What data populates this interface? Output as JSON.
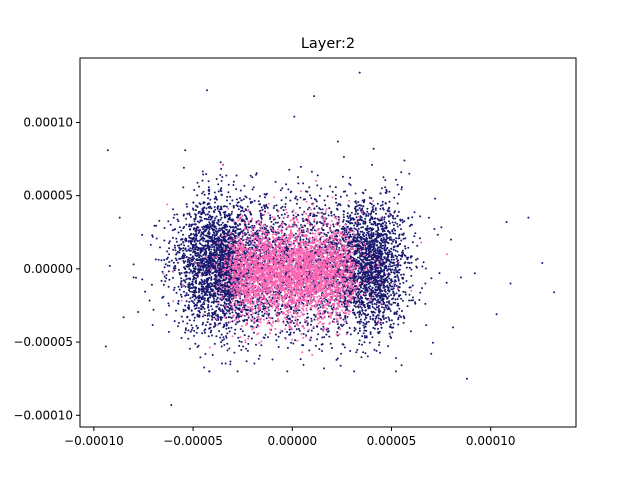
{
  "chart_data": {
    "type": "scatter",
    "title": "Layer:2",
    "xlabel": "",
    "ylabel": "",
    "xlim": [
      -0.000107,
      0.000143
    ],
    "ylim": [
      -0.000108,
      0.000144
    ],
    "grid": false,
    "legend": "none",
    "x_ticks": [
      -0.0001,
      -5e-05,
      0.0,
      5e-05,
      0.0001
    ],
    "x_tick_labels": [
      "−0.00010",
      "−0.00005",
      "0.00000",
      "0.00005",
      "0.00010"
    ],
    "y_ticks": [
      -0.0001,
      -5e-05,
      0.0,
      5e-05,
      0.0001
    ],
    "y_tick_labels": [
      "−0.00010",
      "−0.00005",
      "0.00000",
      "0.00005",
      "0.00010"
    ],
    "series": [
      {
        "color": "#191970",
        "marker_size": 1,
        "approx_count": 6500,
        "distribution": "dense cluster roughly x in [-0.00004, 0.00006], y in [-0.00005, 0.00006] with denser lobes near x=-0.00004 and x=0.00004",
        "outliers": [
          [
            -9.3e-05,
            8.1e-05
          ],
          [
            -9.4e-05,
            -5.3e-05
          ],
          [
            -4.3e-05,
            0.000122
          ],
          [
            3.4e-05,
            0.000134
          ],
          [
            1.1e-05,
            0.000118
          ],
          [
            1e-06,
            0.000104
          ],
          [
            0.000108,
            3.2e-05
          ],
          [
            0.000119,
            3.5e-05
          ],
          [
            0.000126,
            4e-06
          ],
          [
            0.000132,
            -1.6e-05
          ],
          [
            0.00011,
            -1e-05
          ],
          [
            9.2e-05,
            -3e-06
          ],
          [
            8.8e-05,
            -7.5e-05
          ],
          [
            -6.1e-05,
            -9.3e-05
          ],
          [
            0.000103,
            -3.1e-05
          ],
          [
            -8.5e-05,
            -3.3e-05
          ],
          [
            -9.2e-05,
            2e-06
          ],
          [
            -8.7e-05,
            3.5e-05
          ],
          [
            2.3e-05,
            8.7e-05
          ],
          [
            4.1e-05,
            8.2e-05
          ],
          [
            -5.4e-05,
            8.1e-05
          ],
          [
            5.9e-05,
            6.5e-05
          ],
          [
            7.2e-05,
            4.8e-05
          ],
          [
            8e-05,
            2e-05
          ],
          [
            8.1e-05,
            -4e-05
          ],
          [
            7e-05,
            -5.8e-05
          ]
        ]
      },
      {
        "color": "#ff69b4",
        "marker_size": 1,
        "approx_count": 3500,
        "distribution": "concentrated cluster roughly x in [-0.000035, 0.00003], y in [-0.00004, 0.00003]",
        "outliers": [
          [
            -6.3e-05,
            4.4e-05
          ],
          [
            4.9e-05,
            3.7e-05
          ],
          [
            6.5e-05,
            1.8e-05
          ],
          [
            7.8e-05,
            1e-05
          ],
          [
            -6e-05,
            -2.2e-05
          ],
          [
            5e-06,
            -5.7e-05
          ],
          [
            -3.5e-05,
            7.1e-05
          ],
          [
            1.2e-05,
            6e-05
          ],
          [
            6e-05,
            -1.5e-05
          ]
        ]
      }
    ]
  }
}
